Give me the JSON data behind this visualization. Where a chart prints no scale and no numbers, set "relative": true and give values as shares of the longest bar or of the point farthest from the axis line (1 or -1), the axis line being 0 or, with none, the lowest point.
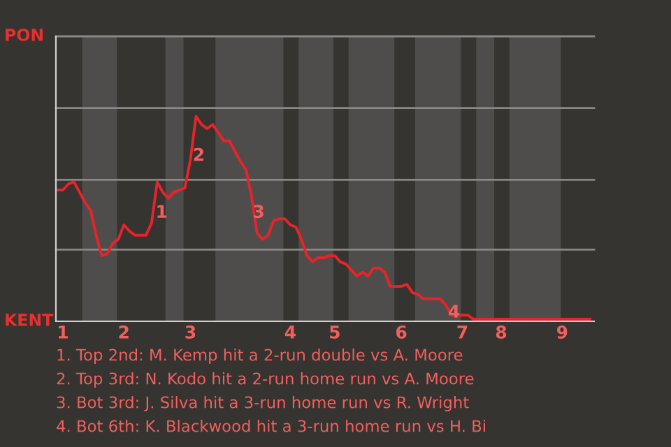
{
  "chart_data": {
    "type": "line",
    "relative": true,
    "categories": [
      null,
      "1",
      null,
      null,
      null,
      null,
      null,
      null,
      null,
      null,
      null,
      null,
      "2",
      null,
      null,
      null,
      null,
      null,
      null,
      null,
      null,
      null,
      null,
      null,
      "3",
      null,
      null,
      null,
      null,
      null,
      null,
      null,
      null,
      null,
      null,
      null,
      null,
      null,
      null,
      null,
      null,
      null,
      "4",
      null,
      null,
      null,
      null,
      null,
      null,
      null,
      "5",
      null,
      null,
      null,
      null,
      null,
      null,
      null,
      null,
      null,
      null,
      null,
      "6",
      null,
      null,
      null,
      null,
      null,
      null,
      null,
      null,
      null,
      null,
      "7",
      null,
      null,
      null,
      null,
      null,
      null,
      "8",
      null,
      null,
      null,
      null,
      null,
      null,
      null,
      null,
      null,
      null,
      "9",
      null,
      null,
      null,
      null,
      null
    ],
    "series": [
      {
        "color": "#e8232a",
        "values": [
          0.64,
          0.64,
          0.67,
          0.68,
          0.63,
          0.58,
          0.54,
          0.42,
          0.32,
          0.33,
          0.38,
          0.4,
          0.47,
          0.44,
          0.42,
          0.42,
          0.42,
          0.48,
          0.68,
          0.63,
          0.6,
          0.63,
          0.64,
          0.65,
          0.79,
          1,
          0.96,
          0.94,
          0.96,
          0.92,
          0.88,
          0.88,
          0.83,
          0.78,
          0.74,
          0.61,
          0.43,
          0.4,
          0.42,
          0.49,
          0.5,
          0.5,
          0.47,
          0.46,
          0.4,
          0.32,
          0.29,
          0.31,
          0.31,
          0.32,
          0.32,
          0.29,
          0.28,
          0.25,
          0.22,
          0.24,
          0.22,
          0.26,
          0.26,
          0.24,
          0.17,
          0.17,
          0.17,
          0.18,
          0.14,
          0.13,
          0.11,
          0.11,
          0.11,
          0.11,
          0.08,
          0.03,
          0.03,
          0.03,
          0.03,
          0.01,
          0.01,
          0.01,
          0.01,
          0.01,
          0.01,
          0.01,
          0.01,
          0.01,
          0.01,
          0.01,
          0.01,
          0.01,
          0.01,
          0.01,
          0.01,
          0.01,
          0.01,
          0.01,
          0.01,
          0.01,
          0.01
        ]
      }
    ],
    "ref_lines": [
      {
        "axis": "y",
        "value": 0.35,
        "color": "#8a8886"
      },
      {
        "axis": "y",
        "value": 0.69,
        "color": "#8a8886"
      },
      {
        "axis": "y",
        "value": 1.04,
        "color": "#8a8886"
      },
      {
        "axis": "y",
        "value": 1.39,
        "color": "#8a8886"
      }
    ],
    "annotations": [
      "PON",
      "KENT",
      "1",
      "2",
      "3",
      "4",
      "1. Top 2nd: M. Kemp hit a 2-run double vs A. Moore",
      "2. Top 3rd: N. Kodo hit a 2-run home run vs A. Moore",
      "3. Bot 3rd: J. Silva hit a 3-run home run vs R. Wright",
      "4. Bot 6th: K. Blackwood hit a 3-run home run vs H. Bi"
    ]
  }
}
